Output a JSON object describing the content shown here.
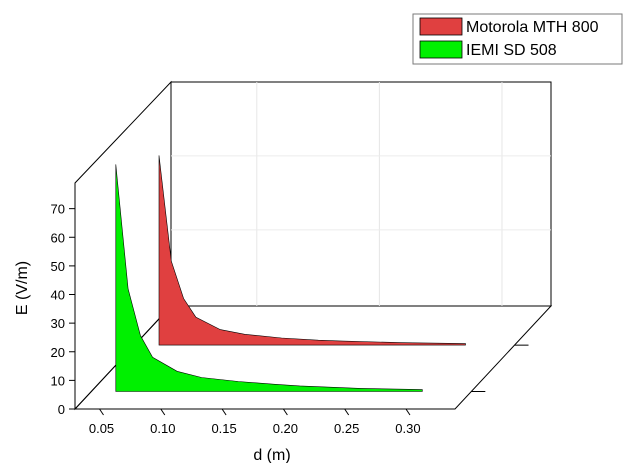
{
  "chart_data": {
    "type": "area",
    "projection": "3d-waterfall",
    "title": "",
    "xlabel": "d (m)",
    "ylabel": "E (V/m)",
    "x_ticks": [
      "0.05",
      "0.10",
      "0.15",
      "0.20",
      "0.25",
      "0.30"
    ],
    "y_ticks": [
      "0",
      "10",
      "20",
      "30",
      "40",
      "50",
      "60",
      "70"
    ],
    "xlim": [
      0.03,
      0.34
    ],
    "ylim": [
      0,
      72
    ],
    "grid": true,
    "legend_position": "top-right",
    "series": [
      {
        "name": "Motorola MTH 800",
        "color": "#e04040",
        "x": [
          0.05,
          0.06,
          0.07,
          0.08,
          0.1,
          0.12,
          0.15,
          0.18,
          0.2,
          0.25,
          0.3
        ],
        "values": [
          61,
          27,
          15,
          9,
          5,
          3.5,
          2.3,
          1.6,
          1.3,
          0.8,
          0.5
        ]
      },
      {
        "name": "IEMI SD 508",
        "color": "#00f000",
        "x": [
          0.05,
          0.06,
          0.07,
          0.08,
          0.1,
          0.12,
          0.15,
          0.18,
          0.2,
          0.25,
          0.3
        ],
        "values": [
          73,
          33,
          18,
          11,
          6.5,
          4.5,
          3.2,
          2.3,
          1.8,
          1.0,
          0.6
        ]
      }
    ]
  }
}
